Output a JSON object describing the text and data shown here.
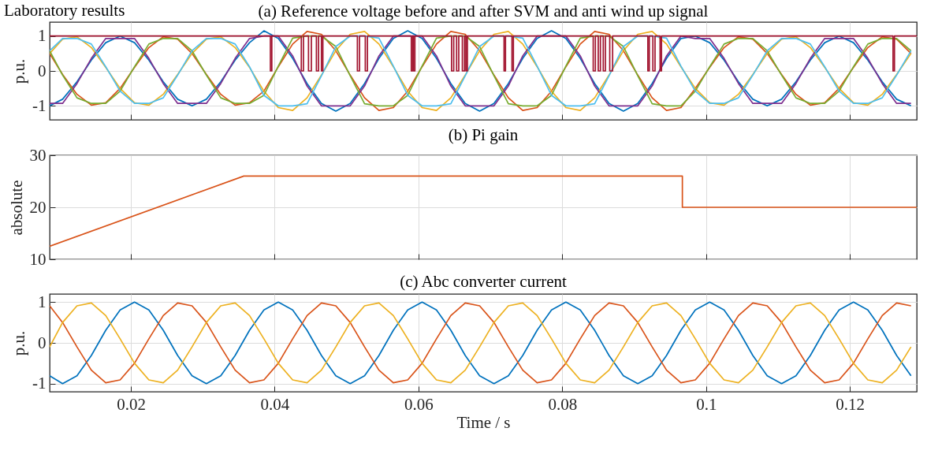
{
  "chart_data": [
    {
      "type": "line",
      "title": "(a) Reference voltage before and after SVM and anti wind up signal",
      "ylabel": "p.u.",
      "annotations": [
        "Laboratory results"
      ],
      "xlim": [
        0.0087,
        0.1293
      ],
      "xticks": [
        0.02,
        0.04,
        0.06,
        0.08,
        0.1,
        0.12
      ],
      "ylim": [
        -1.4,
        1.4
      ],
      "yticks": [
        -1,
        0,
        1
      ],
      "grid": true,
      "tick_labels": "y",
      "x": [
        0.0087,
        0.0105,
        0.0125,
        0.0145,
        0.0165,
        0.0185,
        0.0205,
        0.0225,
        0.0245,
        0.0265,
        0.0285,
        0.0305,
        0.0325,
        0.0345,
        0.0365,
        0.0385,
        0.0405,
        0.0425,
        0.0445,
        0.0465,
        0.0485,
        0.0505,
        0.0525,
        0.0545,
        0.0565,
        0.0585,
        0.0605,
        0.0625,
        0.0645,
        0.0665,
        0.0685,
        0.0705,
        0.0725,
        0.0745,
        0.0765,
        0.0785,
        0.0805,
        0.0825,
        0.0845,
        0.0865,
        0.0885,
        0.0905,
        0.0925,
        0.0945,
        0.0965,
        0.0985,
        0.1005,
        0.1025,
        0.1045,
        0.1065,
        0.1085,
        0.1105,
        0.1125,
        0.1145,
        0.1165,
        0.1185,
        0.1205,
        0.1225,
        0.1245,
        0.1265,
        0.1285
      ],
      "series": [
        {
          "color": "#0072bd",
          "values": [
            -1,
            -0.81,
            -0.31,
            0.31,
            0.81,
            1,
            0.81,
            0.31,
            -0.31,
            -0.81,
            -1,
            -0.81,
            -0.31,
            0.31,
            0.81,
            1.15,
            0.93,
            0.36,
            -0.36,
            -0.93,
            -1.15,
            -0.93,
            -0.36,
            0.36,
            0.93,
            1.15,
            0.93,
            0.36,
            -0.36,
            -0.93,
            -1.15,
            -0.93,
            -0.36,
            0.36,
            0.93,
            1.15,
            0.93,
            0.36,
            -0.36,
            -0.93,
            -1.15,
            -0.93,
            -0.36,
            0.36,
            0.93,
            1,
            0.81,
            0.31,
            -0.31,
            -0.81,
            -1,
            -0.81,
            -0.31,
            0.31,
            0.81,
            1,
            0.81,
            0.31,
            -0.31,
            -0.81,
            -1
          ]
        },
        {
          "color": "#d95319",
          "values": [
            0.5,
            -0.1,
            -0.67,
            -0.98,
            -0.91,
            -0.5,
            0.1,
            0.67,
            0.98,
            0.91,
            0.5,
            -0.1,
            -0.67,
            -0.98,
            -0.91,
            -0.58,
            0.12,
            0.77,
            1.13,
            1.05,
            0.58,
            -0.12,
            -0.77,
            -1.13,
            -1.05,
            -0.58,
            0.12,
            0.77,
            1.13,
            1.05,
            0.58,
            -0.12,
            -0.77,
            -1.13,
            -1.05,
            -0.58,
            0.12,
            0.77,
            1.13,
            1.05,
            0.58,
            -0.12,
            -0.77,
            -1.13,
            -1.05,
            -0.5,
            0.1,
            0.67,
            0.98,
            0.91,
            0.5,
            -0.1,
            -0.67,
            -0.98,
            -0.91,
            -0.5,
            0.1,
            0.67,
            0.98,
            0.91,
            0.5
          ]
        },
        {
          "color": "#edb120",
          "values": [
            0.5,
            0.91,
            0.98,
            0.67,
            0.1,
            -0.5,
            -0.91,
            -0.98,
            -0.67,
            -0.1,
            0.5,
            0.91,
            0.98,
            0.67,
            0.1,
            -0.58,
            -1.05,
            -1.13,
            -0.77,
            -0.12,
            0.58,
            1.05,
            1.13,
            0.77,
            0.12,
            -0.58,
            -1.05,
            -1.13,
            -0.77,
            -0.12,
            0.58,
            1.05,
            1.13,
            0.77,
            0.12,
            -0.58,
            -1.05,
            -1.13,
            -0.77,
            -0.12,
            0.58,
            1.05,
            1.13,
            0.77,
            0.12,
            -0.5,
            -0.91,
            -0.98,
            -0.67,
            -0.1,
            0.5,
            0.91,
            0.98,
            0.67,
            0.1,
            -0.5,
            -0.91,
            -0.98,
            -0.67,
            -0.1,
            0.5
          ]
        },
        {
          "color": "#7e2f8e",
          "values": [
            -0.93,
            -0.93,
            -0.36,
            0.36,
            0.93,
            0.93,
            0.93,
            0.36,
            -0.36,
            -0.93,
            -0.93,
            -0.93,
            -0.36,
            0.36,
            0.93,
            1,
            1,
            0.43,
            -0.43,
            -1,
            -1,
            -1,
            -0.43,
            0.43,
            1,
            1,
            1,
            0.43,
            -0.43,
            -1,
            -1,
            -1,
            -0.43,
            0.43,
            1,
            1,
            1,
            0.43,
            -0.43,
            -1,
            -1,
            -1,
            -0.43,
            0.43,
            1,
            0.93,
            0.93,
            0.36,
            -0.36,
            -0.93,
            -0.93,
            -0.93,
            -0.36,
            0.36,
            0.93,
            0.93,
            0.93,
            0.36,
            -0.36,
            -0.93,
            -0.93
          ]
        },
        {
          "color": "#77ac30",
          "values": [
            0.58,
            -0.12,
            -0.77,
            -0.93,
            -0.93,
            -0.58,
            0.12,
            0.77,
            0.93,
            0.93,
            0.58,
            -0.12,
            -0.77,
            -0.93,
            -0.93,
            -0.7,
            0.14,
            0.94,
            1,
            1,
            0.7,
            -0.14,
            -0.94,
            -1,
            -1,
            -0.7,
            0.14,
            0.94,
            1,
            1,
            0.7,
            -0.14,
            -0.94,
            -1,
            -1,
            -0.7,
            0.14,
            0.94,
            1,
            1,
            0.7,
            -0.14,
            -0.94,
            -1,
            -1,
            -0.58,
            0.12,
            0.77,
            0.93,
            0.93,
            0.58,
            -0.12,
            -0.77,
            -0.93,
            -0.93,
            -0.58,
            0.12,
            0.77,
            0.93,
            0.93,
            0.58
          ]
        },
        {
          "color": "#4dbeee",
          "values": [
            0.58,
            0.93,
            0.93,
            0.77,
            0.12,
            -0.58,
            -0.93,
            -0.93,
            -0.77,
            -0.12,
            0.58,
            0.93,
            0.93,
            0.77,
            0.12,
            -0.7,
            -1,
            -1,
            -0.94,
            -0.14,
            0.7,
            1,
            1,
            0.94,
            0.14,
            -0.7,
            -1,
            -1,
            -0.94,
            -0.14,
            0.7,
            1,
            1,
            0.94,
            0.14,
            -0.7,
            -1,
            -1,
            -0.94,
            -0.14,
            0.7,
            1,
            1,
            0.94,
            0.14,
            -0.58,
            -0.93,
            -0.93,
            -0.77,
            -0.12,
            0.58,
            0.93,
            0.93,
            0.77,
            0.12,
            -0.58,
            -0.93,
            -0.93,
            -0.77,
            -0.12,
            0.58
          ]
        },
        {
          "type": "step",
          "color": "#a2142f",
          "x": [
            0.0087,
            0.0394,
            0.0396,
            0.0437,
            0.044,
            0.0447,
            0.0451,
            0.0458,
            0.0461,
            0.0465,
            0.0467,
            0.0515,
            0.0518,
            0.0526,
            0.0529,
            0.059,
            0.0592,
            0.0593,
            0.0595,
            0.0646,
            0.0649,
            0.0653,
            0.0656,
            0.0661,
            0.0664,
            0.0666,
            0.0668,
            0.0719,
            0.0721,
            0.073,
            0.0732,
            0.0843,
            0.0846,
            0.085,
            0.0853,
            0.0857,
            0.086,
            0.0866,
            0.087,
            0.0919,
            0.0921,
            0.0926,
            0.0929,
            0.0936,
            0.0938,
            0.126,
            0.1262,
            0.1293
          ],
          "values": [
            1,
            0,
            1,
            0,
            1,
            0,
            1,
            0,
            1,
            0,
            1,
            0,
            1,
            0,
            1,
            0,
            1,
            0,
            1,
            0,
            1,
            0,
            1,
            0,
            1,
            0,
            1,
            0,
            1,
            0,
            1,
            0,
            1,
            0,
            1,
            0,
            1,
            0,
            1,
            0,
            1,
            0,
            1,
            0,
            1,
            0,
            1,
            1
          ]
        }
      ]
    },
    {
      "type": "line",
      "title": "(b) Pi gain",
      "ylabel": "absolute",
      "xlim": [
        0.0087,
        0.1293
      ],
      "xticks": [
        0.02,
        0.04,
        0.06,
        0.08,
        0.1,
        0.12
      ],
      "ylim": [
        10,
        30
      ],
      "yticks": [
        10,
        20,
        30
      ],
      "grid": true,
      "tick_labels": "y",
      "series": [
        {
          "color": "#d95319",
          "x": [
            0.0087,
            0.0357,
            0.0967,
            0.0967,
            0.1293
          ],
          "values": [
            12.5,
            26,
            26,
            20,
            20
          ]
        }
      ]
    },
    {
      "type": "line",
      "title": "(c) Abc converter current",
      "xlabel": "Time / s",
      "ylabel": "p.u.",
      "xlim": [
        0.0087,
        0.1293
      ],
      "xticks": [
        0.02,
        0.04,
        0.06,
        0.08,
        0.1,
        0.12
      ],
      "ylim": [
        -1.2,
        1.2
      ],
      "yticks": [
        -1,
        0,
        1
      ],
      "grid": true,
      "x": [
        0.0087,
        0.0105,
        0.0125,
        0.0145,
        0.0165,
        0.0185,
        0.0205,
        0.0225,
        0.0245,
        0.0265,
        0.0285,
        0.0305,
        0.0325,
        0.0345,
        0.0365,
        0.0385,
        0.0405,
        0.0425,
        0.0445,
        0.0465,
        0.0485,
        0.0505,
        0.0525,
        0.0545,
        0.0565,
        0.0585,
        0.0605,
        0.0625,
        0.0645,
        0.0665,
        0.0685,
        0.0705,
        0.0725,
        0.0745,
        0.0765,
        0.0785,
        0.0805,
        0.0825,
        0.0845,
        0.0865,
        0.0885,
        0.0905,
        0.0925,
        0.0945,
        0.0965,
        0.0985,
        0.1005,
        0.1025,
        0.1045,
        0.1065,
        0.1085,
        0.1105,
        0.1125,
        0.1145,
        0.1165,
        0.1185,
        0.1205,
        0.1225,
        0.1245,
        0.1265,
        0.1285
      ],
      "series": [
        {
          "color": "#0072bd",
          "values": [
            -0.81,
            -1,
            -0.81,
            -0.31,
            0.31,
            0.81,
            1,
            0.81,
            0.31,
            -0.31,
            -0.81,
            -1,
            -0.81,
            -0.31,
            0.31,
            0.81,
            1,
            0.81,
            0.31,
            -0.31,
            -0.81,
            -1,
            -0.81,
            -0.31,
            0.31,
            0.81,
            1,
            0.81,
            0.31,
            -0.31,
            -0.81,
            -1,
            -0.81,
            -0.31,
            0.31,
            0.81,
            1,
            0.81,
            0.31,
            -0.31,
            -0.81,
            -1,
            -0.81,
            -0.31,
            0.31,
            0.81,
            1,
            0.81,
            0.31,
            -0.31,
            -0.81,
            -1,
            -0.81,
            -0.31,
            0.31,
            0.81,
            1,
            0.81,
            0.31,
            -0.31,
            -0.81
          ]
        },
        {
          "color": "#d95319",
          "values": [
            0.91,
            0.5,
            -0.1,
            -0.67,
            -0.98,
            -0.91,
            -0.5,
            0.1,
            0.67,
            0.98,
            0.91,
            0.5,
            -0.1,
            -0.67,
            -0.98,
            -0.91,
            -0.5,
            0.1,
            0.67,
            0.98,
            0.91,
            0.5,
            -0.1,
            -0.67,
            -0.98,
            -0.91,
            -0.5,
            0.1,
            0.67,
            0.98,
            0.91,
            0.5,
            -0.1,
            -0.67,
            -0.98,
            -0.91,
            -0.5,
            0.1,
            0.67,
            0.98,
            0.91,
            0.5,
            -0.1,
            -0.67,
            -0.98,
            -0.91,
            -0.5,
            0.1,
            0.67,
            0.98,
            0.91,
            0.5,
            -0.1,
            -0.67,
            -0.98,
            -0.91,
            -0.5,
            0.1,
            0.67,
            0.98,
            0.91
          ]
        },
        {
          "color": "#edb120",
          "values": [
            -0.1,
            0.5,
            0.91,
            0.98,
            0.67,
            0.1,
            -0.5,
            -0.91,
            -0.98,
            -0.67,
            -0.1,
            0.5,
            0.91,
            0.98,
            0.67,
            0.1,
            -0.5,
            -0.91,
            -0.98,
            -0.67,
            -0.1,
            0.5,
            0.91,
            0.98,
            0.67,
            0.1,
            -0.5,
            -0.91,
            -0.98,
            -0.67,
            -0.1,
            0.5,
            0.91,
            0.98,
            0.67,
            0.1,
            -0.5,
            -0.91,
            -0.98,
            -0.67,
            -0.1,
            0.5,
            0.91,
            0.98,
            0.67,
            0.1,
            -0.5,
            -0.91,
            -0.98,
            -0.67,
            -0.1,
            0.5,
            0.91,
            0.98,
            0.67,
            0.1,
            -0.5,
            -0.91,
            -0.98,
            -0.67,
            -0.1
          ]
        }
      ]
    }
  ]
}
